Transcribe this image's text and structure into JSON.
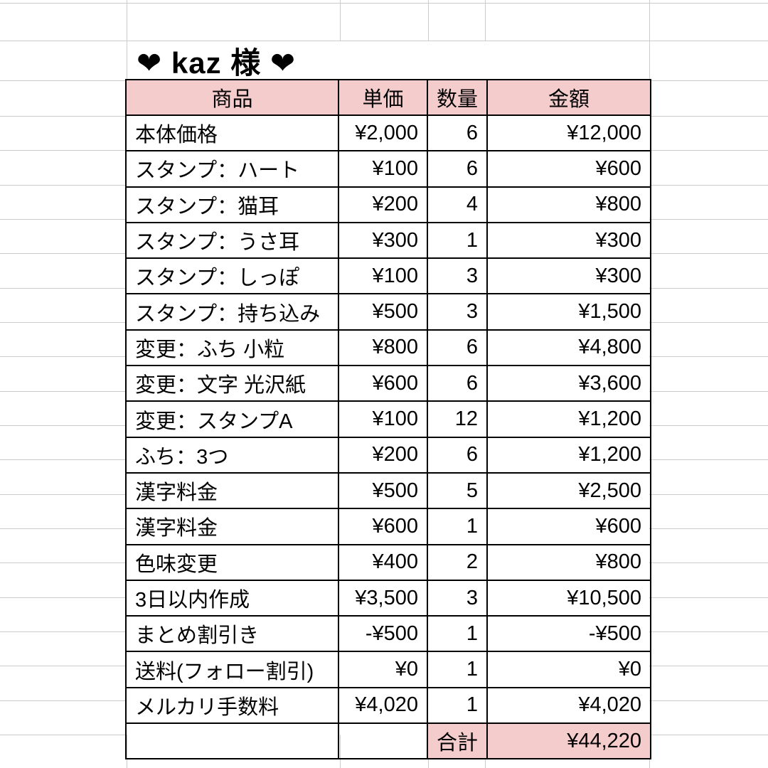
{
  "title": "❤ kaz 様 ❤",
  "table": {
    "headers": {
      "item": "商品",
      "unit": "単価",
      "qty": "数量",
      "amount": "金額"
    },
    "rows": [
      {
        "item": "本体価格",
        "unit": "¥2,000",
        "qty": "6",
        "amount": "¥12,000"
      },
      {
        "item": "スタンプ：ハート",
        "unit": "¥100",
        "qty": "6",
        "amount": "¥600"
      },
      {
        "item": "スタンプ：猫耳",
        "unit": "¥200",
        "qty": "4",
        "amount": "¥800"
      },
      {
        "item": "スタンプ：うさ耳",
        "unit": "¥300",
        "qty": "1",
        "amount": "¥300"
      },
      {
        "item": "スタンプ：しっぽ",
        "unit": "¥100",
        "qty": "3",
        "amount": "¥300"
      },
      {
        "item": "スタンプ：持ち込み",
        "unit": "¥500",
        "qty": "3",
        "amount": "¥1,500"
      },
      {
        "item": "変更：ふち 小粒",
        "unit": "¥800",
        "qty": "6",
        "amount": "¥4,800"
      },
      {
        "item": "変更：文字 光沢紙",
        "unit": "¥600",
        "qty": "6",
        "amount": "¥3,600"
      },
      {
        "item": "変更：スタンプA",
        "unit": "¥100",
        "qty": "12",
        "amount": "¥1,200"
      },
      {
        "item": "ふち：3つ",
        "unit": "¥200",
        "qty": "6",
        "amount": "¥1,200"
      },
      {
        "item": "漢字料金",
        "unit": "¥500",
        "qty": "5",
        "amount": "¥2,500"
      },
      {
        "item": "漢字料金",
        "unit": "¥600",
        "qty": "1",
        "amount": "¥600"
      },
      {
        "item": "色味変更",
        "unit": "¥400",
        "qty": "2",
        "amount": "¥800"
      },
      {
        "item": "3日以内作成",
        "unit": "¥3,500",
        "qty": "3",
        "amount": "¥10,500"
      },
      {
        "item": "まとめ割引き",
        "unit": "-¥500",
        "qty": "1",
        "amount": "-¥500"
      },
      {
        "item": "送料(フォロー割引)",
        "unit": "¥0",
        "qty": "1",
        "amount": "¥0"
      },
      {
        "item": "メルカリ手数料",
        "unit": "¥4,020",
        "qty": "1",
        "amount": "¥4,020"
      }
    ],
    "total": {
      "label": "合計",
      "amount": "¥44,220"
    },
    "empty": ""
  },
  "colors": {
    "header_bg": "#f4cccc",
    "gridline": "#cccccc",
    "border": "#000000"
  }
}
